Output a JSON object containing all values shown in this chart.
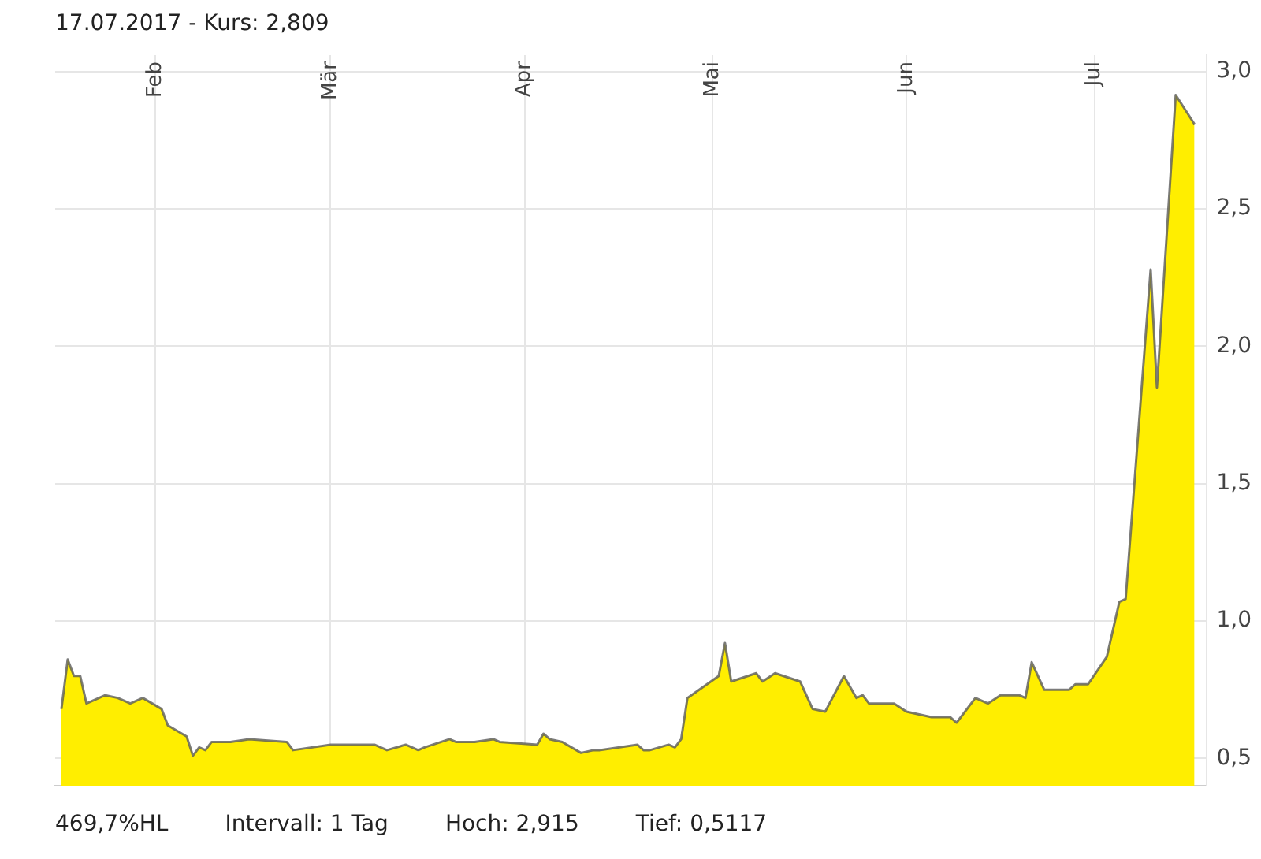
{
  "chart_data": {
    "type": "area",
    "title": "17.07.2017  -  Kurs: 2,809",
    "annotations": [
      "469,7%HL",
      "Intervall: 1 Tag",
      "Hoch:  2,915",
      "Tief: 0,5117"
    ],
    "x": [
      "2017-01-17",
      "2017-01-18",
      "2017-01-19",
      "2017-01-20",
      "2017-01-21",
      "2017-01-24",
      "2017-01-26",
      "2017-01-28",
      "2017-01-30",
      "2017-02-02",
      "2017-02-03",
      "2017-02-06",
      "2017-02-07",
      "2017-02-08",
      "2017-02-09",
      "2017-02-10",
      "2017-02-13",
      "2017-02-16",
      "2017-02-22",
      "2017-02-23",
      "2017-03-01",
      "2017-03-08",
      "2017-03-10",
      "2017-03-13",
      "2017-03-15",
      "2017-03-16",
      "2017-03-20",
      "2017-03-21",
      "2017-03-24",
      "2017-03-27",
      "2017-03-28",
      "2017-04-03",
      "2017-04-04",
      "2017-04-05",
      "2017-04-07",
      "2017-04-10",
      "2017-04-12",
      "2017-04-13",
      "2017-04-19",
      "2017-04-20",
      "2017-04-21",
      "2017-04-24",
      "2017-04-25",
      "2017-04-26",
      "2017-04-27",
      "2017-05-02",
      "2017-05-03",
      "2017-05-04",
      "2017-05-08",
      "2017-05-09",
      "2017-05-11",
      "2017-05-15",
      "2017-05-17",
      "2017-05-19",
      "2017-05-22",
      "2017-05-24",
      "2017-05-25",
      "2017-05-26",
      "2017-05-30",
      "2017-06-01",
      "2017-06-05",
      "2017-06-08",
      "2017-06-09",
      "2017-06-12",
      "2017-06-14",
      "2017-06-16",
      "2017-06-19",
      "2017-06-20",
      "2017-06-21",
      "2017-06-23",
      "2017-06-27",
      "2017-06-28",
      "2017-06-30",
      "2017-07-03",
      "2017-07-05",
      "2017-07-06",
      "2017-07-10",
      "2017-07-11",
      "2017-07-14",
      "2017-07-17"
    ],
    "series": [
      {
        "color": "#ffee00",
        "values": [
          0.68,
          0.86,
          0.8,
          0.8,
          0.7,
          0.73,
          0.72,
          0.7,
          0.72,
          0.68,
          0.62,
          0.58,
          0.51,
          0.54,
          0.53,
          0.56,
          0.56,
          0.57,
          0.56,
          0.53,
          0.55,
          0.55,
          0.53,
          0.55,
          0.53,
          0.54,
          0.57,
          0.56,
          0.56,
          0.57,
          0.56,
          0.55,
          0.59,
          0.57,
          0.56,
          0.52,
          0.53,
          0.53,
          0.55,
          0.53,
          0.53,
          0.55,
          0.54,
          0.57,
          0.72,
          0.8,
          0.92,
          0.78,
          0.81,
          0.78,
          0.81,
          0.78,
          0.68,
          0.67,
          0.8,
          0.72,
          0.73,
          0.7,
          0.7,
          0.67,
          0.65,
          0.65,
          0.63,
          0.72,
          0.7,
          0.73,
          0.73,
          0.72,
          0.85,
          0.75,
          0.75,
          0.77,
          0.77,
          0.87,
          1.07,
          1.08,
          2.28,
          1.85,
          2.915,
          2.809
        ]
      }
    ],
    "xlim": [
      "2017-01-16",
      "2017-07-19"
    ],
    "xticks": [
      {
        "value": "2017-02-01",
        "label": "Feb"
      },
      {
        "value": "2017-03-01",
        "label": "Mär"
      },
      {
        "value": "2017-04-01",
        "label": "Apr"
      },
      {
        "value": "2017-05-01",
        "label": "Mai"
      },
      {
        "value": "2017-06-01",
        "label": "Jun"
      },
      {
        "value": "2017-07-01",
        "label": "Jul"
      }
    ],
    "ylim": [
      0.4,
      3.06
    ],
    "yticks": [
      {
        "value": 0.5,
        "label": "0,5"
      },
      {
        "value": 1,
        "label": "1,0"
      },
      {
        "value": 1.5,
        "label": "1,5"
      },
      {
        "value": 2,
        "label": "2,0"
      },
      {
        "value": 2.5,
        "label": "2,5"
      },
      {
        "value": 3,
        "label": "3,0"
      }
    ],
    "grid": true,
    "legend": false
  }
}
